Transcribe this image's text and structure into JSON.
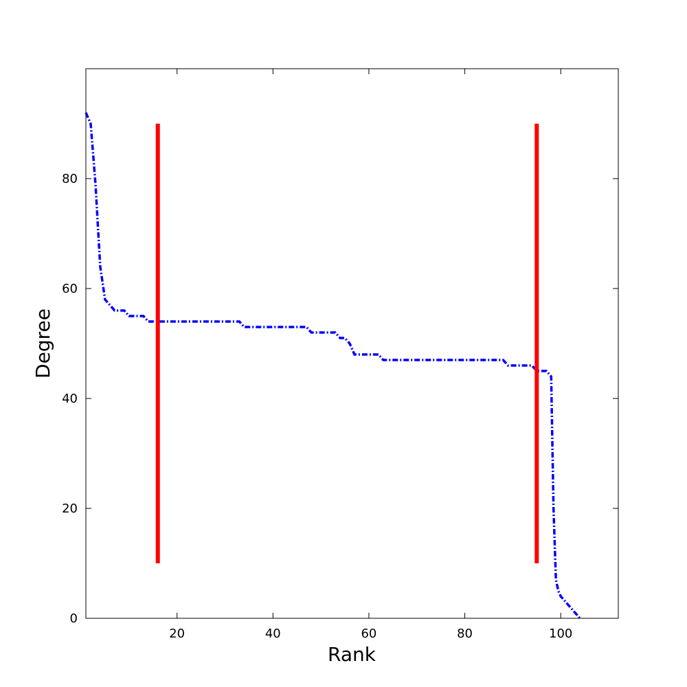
{
  "chart_data": {
    "type": "line",
    "title": "",
    "xlabel": "Rank",
    "ylabel": "Degree",
    "xlim": [
      1,
      112
    ],
    "ylim": [
      0,
      100
    ],
    "xticks": [
      20,
      40,
      60,
      80,
      100
    ],
    "yticks": [
      0,
      20,
      40,
      60,
      80
    ],
    "grid": false,
    "colors": {
      "series": "#0000ff",
      "markers": "#ff0000"
    },
    "series": [
      {
        "style": "dashdot",
        "x": [
          1,
          2,
          3,
          4,
          5,
          6,
          7,
          9,
          10,
          13,
          14,
          20,
          25,
          30,
          33,
          34,
          40,
          47,
          48,
          53,
          54,
          55,
          56,
          57,
          62,
          63,
          70,
          80,
          88,
          89,
          94,
          95,
          96,
          97,
          98,
          98.5,
          99,
          99.5,
          100,
          102,
          104
        ],
        "y": [
          92,
          90,
          79,
          64,
          58,
          57,
          56,
          56,
          55,
          55,
          54,
          54,
          54,
          54,
          54,
          53,
          53,
          53,
          52,
          52,
          51,
          51,
          50,
          48,
          48,
          47,
          47,
          47,
          47,
          46,
          46,
          45,
          45,
          45,
          44,
          20,
          7,
          5,
          4,
          2,
          0
        ]
      }
    ],
    "vlines": [
      {
        "x": 16,
        "ymin": 10,
        "ymax": 90
      },
      {
        "x": 95,
        "ymin": 10,
        "ymax": 90
      }
    ]
  }
}
